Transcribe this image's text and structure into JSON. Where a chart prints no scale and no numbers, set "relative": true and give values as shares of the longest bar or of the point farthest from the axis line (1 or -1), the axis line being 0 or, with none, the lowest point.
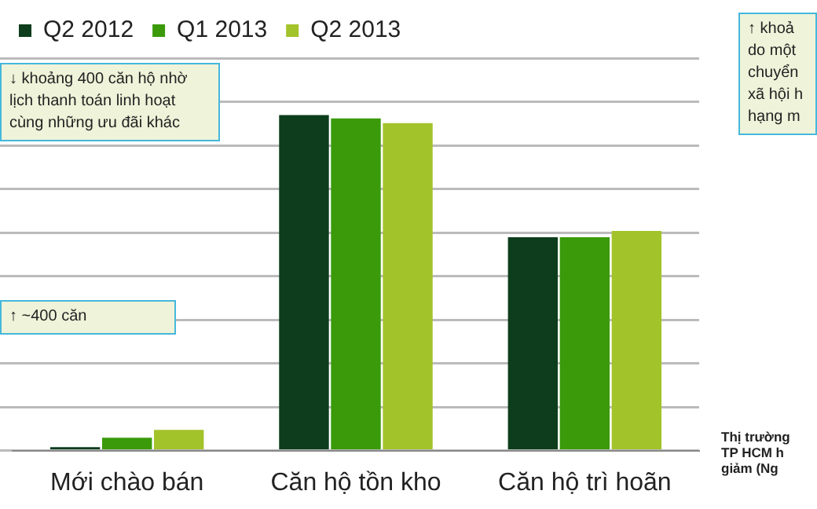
{
  "chart_data": {
    "type": "bar",
    "relative": true,
    "categories": [
      "Mới chào bán",
      "Căn hộ tồn kho",
      "Căn hộ trì hoãn"
    ],
    "series": [
      {
        "name": "Q2 2012",
        "color": "#0d3d1c",
        "values": [
          0.01,
          1,
          0.636
        ]
      },
      {
        "name": "Q1 2013",
        "color": "#3a9a0a",
        "values": [
          0.038,
          0.99,
          0.636
        ]
      },
      {
        "name": "Q2 2013",
        "color": "#a3c32a",
        "values": [
          0.062,
          0.976,
          0.655
        ]
      }
    ],
    "grid": "y",
    "legend": "top",
    "annotations": [
      "↓ khoảng 400 căn hộ nhờ lịch thanh toán linh hoạt cùng những ưu đãi khác",
      "↑ ~400 căn",
      "↑ khoả\ndo một\nchuyển\nxã hội h\nhạng m",
      "Thị trường\nTP HCM h\ngiảm (Ng"
    ]
  }
}
